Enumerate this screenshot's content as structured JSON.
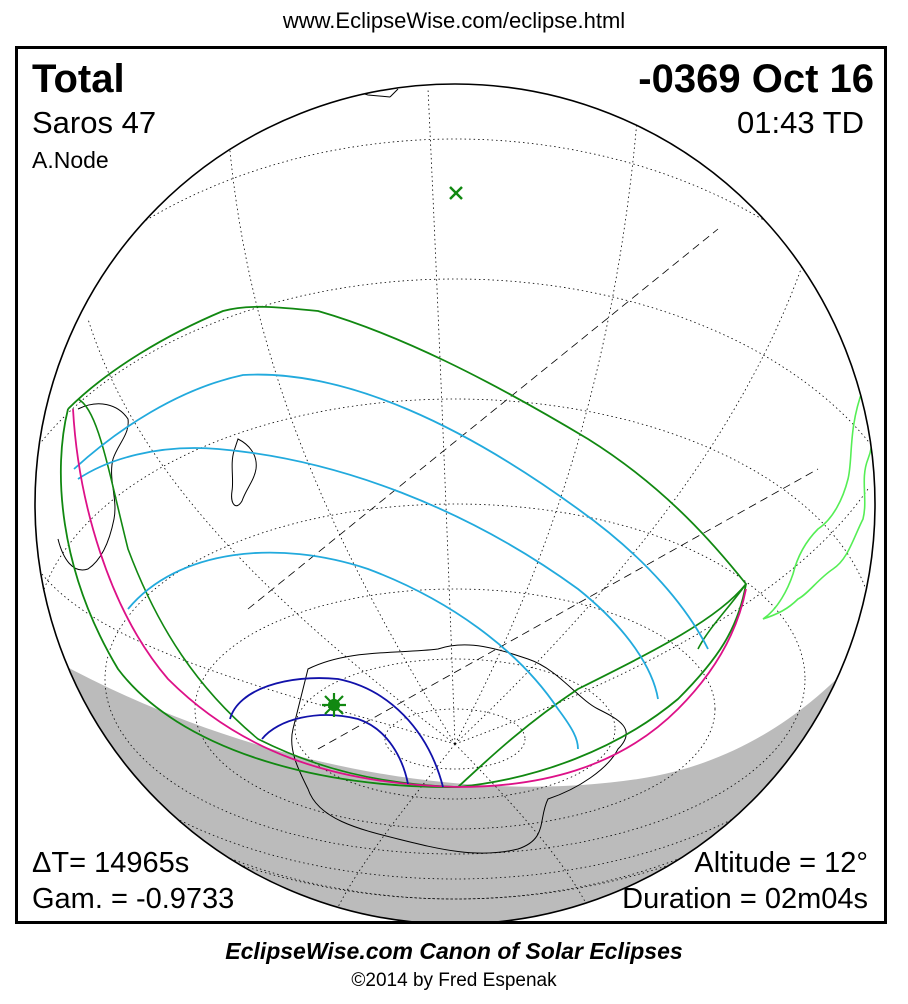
{
  "header": {
    "url": "www.EclipseWise.com/eclipse.html"
  },
  "eclipse": {
    "type": "Total",
    "date": "-0369 Oct 16",
    "saros": "Saros  47",
    "time": "01:43 TD",
    "node": "A.Node",
    "delta_t": "ΔT=  14965s",
    "gamma": "Gam. = -0.9733",
    "altitude": "Altitude = 12°",
    "duration": "Duration = 02m04s"
  },
  "footer": {
    "canon": "EclipseWise.com Canon of Solar Eclipses",
    "copyright": "©2014 by Fred Espenak"
  },
  "colors": {
    "penumbral_limits": "#118811",
    "eclipse_bands": "#22aadd",
    "sunrise_sunset": "#dd1188",
    "umbral_path": "#1111aa",
    "night_shading": "#bbbbbb",
    "land_bright": "#55ee55"
  },
  "icons": {
    "subsolar_point": "x-mark",
    "greatest_eclipse": "star-burst"
  }
}
